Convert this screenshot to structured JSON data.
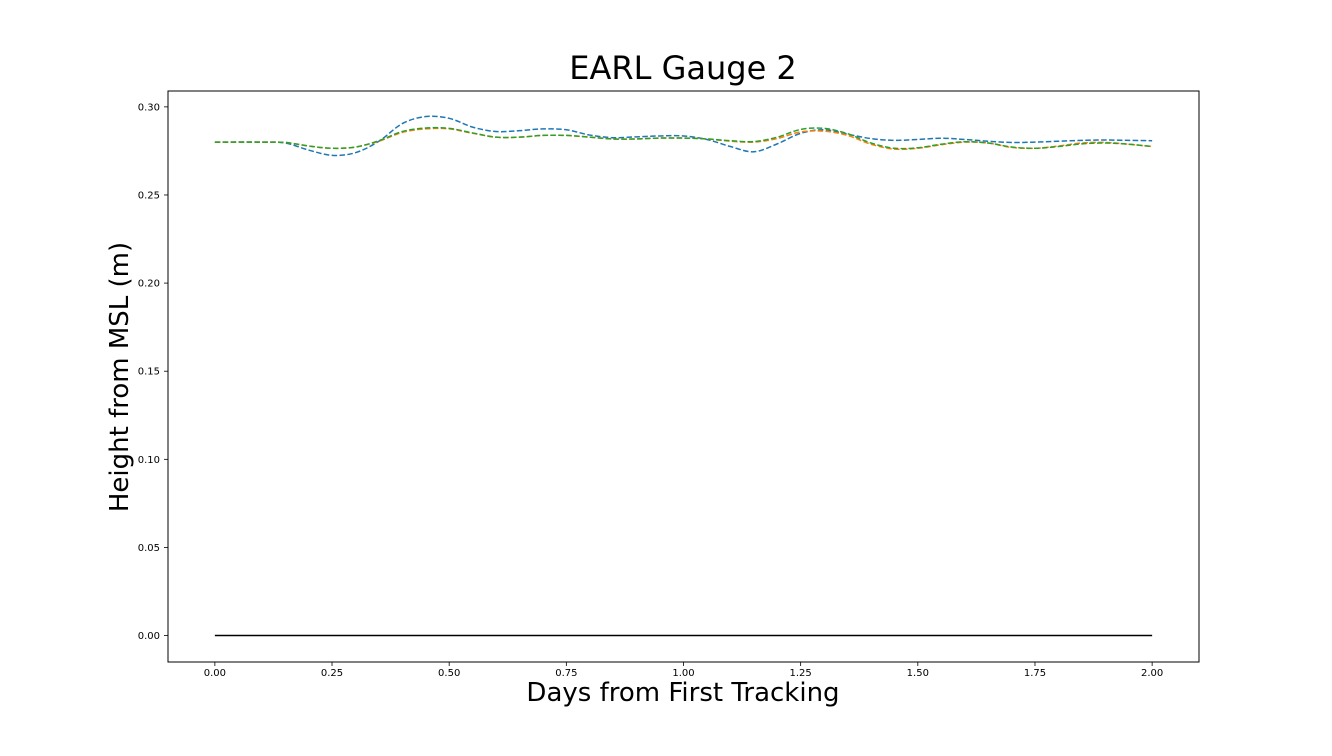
{
  "chart_data": {
    "type": "line",
    "title": "EARL Gauge 2",
    "xlabel": "Days from First Tracking",
    "ylabel": "Height from MSL (m)",
    "xlim": [
      -0.1,
      2.1
    ],
    "ylim": [
      -0.015,
      0.309
    ],
    "xticks": [
      0.0,
      0.25,
      0.5,
      0.75,
      1.0,
      1.25,
      1.5,
      1.75,
      2.0
    ],
    "xtick_labels": [
      "0.00",
      "0.25",
      "0.50",
      "0.75",
      "1.00",
      "1.25",
      "1.50",
      "1.75",
      "2.00"
    ],
    "yticks": [
      0.0,
      0.05,
      0.1,
      0.15,
      0.2,
      0.25,
      0.3
    ],
    "ytick_labels": [
      "0.00",
      "0.05",
      "0.10",
      "0.15",
      "0.20",
      "0.25",
      "0.30"
    ],
    "grid": false,
    "series": [
      {
        "color": "#1f77b4",
        "dash": "dashed",
        "x": [
          0.0,
          0.1,
          0.15,
          0.2,
          0.25,
          0.3,
          0.35,
          0.4,
          0.45,
          0.5,
          0.55,
          0.6,
          0.65,
          0.7,
          0.75,
          0.8,
          0.85,
          0.9,
          0.95,
          1.0,
          1.05,
          1.1,
          1.15,
          1.2,
          1.25,
          1.3,
          1.35,
          1.4,
          1.45,
          1.5,
          1.55,
          1.6,
          1.65,
          1.7,
          1.75,
          1.8,
          1.85,
          1.9,
          1.95,
          2.0
        ],
        "y": [
          0.28,
          0.28,
          0.2795,
          0.2755,
          0.2725,
          0.274,
          0.2805,
          0.2905,
          0.2945,
          0.2935,
          0.2885,
          0.286,
          0.2865,
          0.2875,
          0.287,
          0.284,
          0.2825,
          0.283,
          0.2835,
          0.2835,
          0.2815,
          0.2775,
          0.2745,
          0.279,
          0.285,
          0.287,
          0.2845,
          0.282,
          0.281,
          0.2815,
          0.2822,
          0.2815,
          0.2805,
          0.2798,
          0.28,
          0.2805,
          0.281,
          0.2812,
          0.281,
          0.2808
        ]
      },
      {
        "color": "#ff7f0e",
        "dash": "dashed",
        "x": [
          0.0,
          0.1,
          0.15,
          0.2,
          0.25,
          0.3,
          0.35,
          0.4,
          0.45,
          0.5,
          0.55,
          0.6,
          0.65,
          0.7,
          0.75,
          0.8,
          0.85,
          0.9,
          0.95,
          1.0,
          1.05,
          1.1,
          1.15,
          1.2,
          1.25,
          1.3,
          1.35,
          1.4,
          1.45,
          1.5,
          1.55,
          1.6,
          1.65,
          1.7,
          1.75,
          1.8,
          1.85,
          1.9,
          1.95,
          2.0
        ],
        "y": [
          0.28,
          0.28,
          0.2798,
          0.2778,
          0.2765,
          0.2772,
          0.2805,
          0.2855,
          0.2875,
          0.2875,
          0.285,
          0.2828,
          0.2828,
          0.2838,
          0.2838,
          0.2828,
          0.2818,
          0.2818,
          0.2823,
          0.2823,
          0.2818,
          0.2805,
          0.28,
          0.282,
          0.2858,
          0.2862,
          0.2838,
          0.2788,
          0.276,
          0.2765,
          0.2785,
          0.28,
          0.2795,
          0.277,
          0.2765,
          0.2778,
          0.2795,
          0.2798,
          0.2788,
          0.2775
        ]
      },
      {
        "color": "#2ca02c",
        "dash": "dashed",
        "x": [
          0.0,
          0.1,
          0.15,
          0.2,
          0.25,
          0.3,
          0.35,
          0.4,
          0.45,
          0.5,
          0.55,
          0.6,
          0.65,
          0.7,
          0.75,
          0.8,
          0.85,
          0.9,
          0.95,
          1.0,
          1.05,
          1.1,
          1.15,
          1.2,
          1.25,
          1.3,
          1.35,
          1.4,
          1.45,
          1.5,
          1.55,
          1.6,
          1.65,
          1.7,
          1.75,
          1.8,
          1.85,
          1.9,
          1.95,
          2.0
        ],
        "y": [
          0.28,
          0.28,
          0.2798,
          0.2778,
          0.2765,
          0.2772,
          0.2808,
          0.286,
          0.288,
          0.2878,
          0.2852,
          0.2828,
          0.2828,
          0.2838,
          0.2838,
          0.2828,
          0.2818,
          0.2818,
          0.2823,
          0.2823,
          0.2818,
          0.2808,
          0.2803,
          0.2828,
          0.2872,
          0.2878,
          0.2848,
          0.2795,
          0.2765,
          0.2768,
          0.2788,
          0.2802,
          0.2795,
          0.2772,
          0.2765,
          0.2775,
          0.279,
          0.2795,
          0.2788,
          0.2775
        ]
      },
      {
        "color": "#000000",
        "dash": "solid",
        "x": [
          0.0,
          2.0
        ],
        "y": [
          0.0,
          0.0
        ]
      }
    ]
  }
}
